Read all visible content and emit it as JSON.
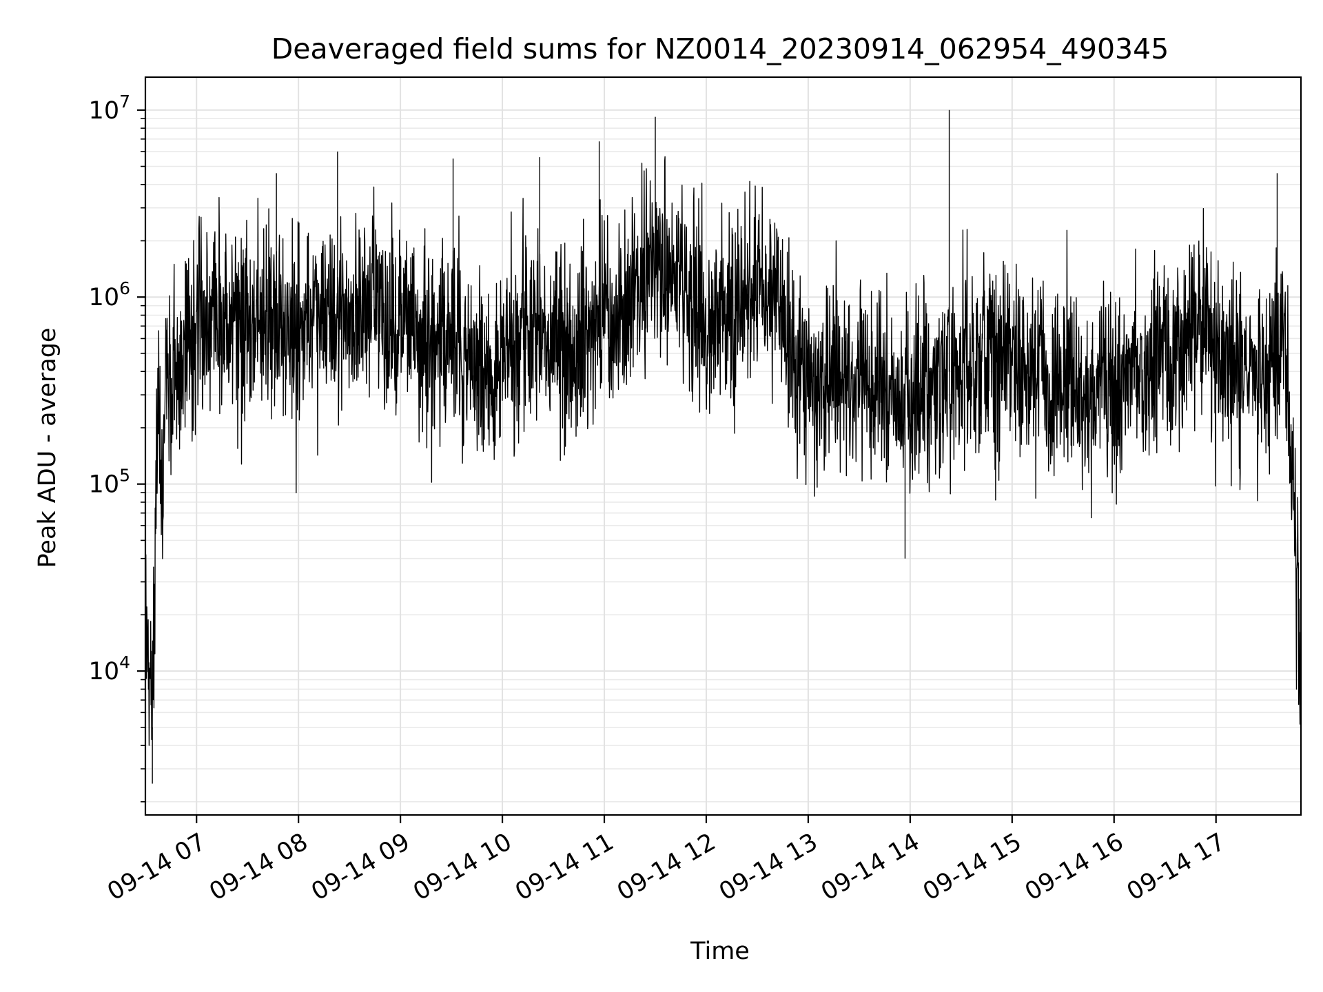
{
  "chart_data": {
    "type": "line",
    "title": "Deaveraged field sums for NZ0014_20230914_062954_490345",
    "xlabel": "Time",
    "ylabel": "Peak ADU - average",
    "xscale": "time",
    "yscale": "log",
    "xlim": [
      "2023-09-14 06:29:54",
      "2023-09-14 17:50:00"
    ],
    "ylim": [
      1700,
      15000000
    ],
    "x_ticks": [
      "2023-09-14 07:00",
      "2023-09-14 08:00",
      "2023-09-14 09:00",
      "2023-09-14 10:00",
      "2023-09-14 11:00",
      "2023-09-14 12:00",
      "2023-09-14 13:00",
      "2023-09-14 14:00",
      "2023-09-14 15:00",
      "2023-09-14 16:00",
      "2023-09-14 17:00"
    ],
    "x_tick_labels": [
      "09-14 07",
      "09-14 08",
      "09-14 09",
      "09-14 10",
      "09-14 11",
      "09-14 12",
      "09-14 13",
      "09-14 14",
      "09-14 15",
      "09-14 16",
      "09-14 17"
    ],
    "y_ticks": [
      10000,
      100000,
      1000000,
      10000000
    ],
    "y_tick_labels": [
      {
        "base": "10",
        "exp": "4"
      },
      {
        "base": "10",
        "exp": "5"
      },
      {
        "base": "10",
        "exp": "6"
      },
      {
        "base": "10",
        "exp": "7"
      }
    ],
    "grid": true,
    "line_color": "#000000",
    "series": [
      {
        "x": [
          "2023-09-14 06:30",
          "2023-09-14 06:32",
          "2023-09-14 06:34",
          "2023-09-14 06:36",
          "2023-09-14 06:38",
          "2023-09-14 06:40",
          "2023-09-14 06:42",
          "2023-09-14 06:45",
          "2023-09-14 06:50",
          "2023-09-14 06:55",
          "2023-09-14 07:00",
          "2023-09-14 07:10",
          "2023-09-14 07:20",
          "2023-09-14 07:30",
          "2023-09-14 07:40",
          "2023-09-14 07:50",
          "2023-09-14 08:00",
          "2023-09-14 08:10",
          "2023-09-14 08:20",
          "2023-09-14 08:30",
          "2023-09-14 08:40",
          "2023-09-14 08:50",
          "2023-09-14 09:00",
          "2023-09-14 09:10",
          "2023-09-14 09:20",
          "2023-09-14 09:30",
          "2023-09-14 09:40",
          "2023-09-14 09:50",
          "2023-09-14 10:00",
          "2023-09-14 10:10",
          "2023-09-14 10:20",
          "2023-09-14 10:30",
          "2023-09-14 10:40",
          "2023-09-14 10:50",
          "2023-09-14 11:00",
          "2023-09-14 11:10",
          "2023-09-14 11:20",
          "2023-09-14 11:30",
          "2023-09-14 11:40",
          "2023-09-14 11:50",
          "2023-09-14 12:00",
          "2023-09-14 12:10",
          "2023-09-14 12:20",
          "2023-09-14 12:30",
          "2023-09-14 12:40",
          "2023-09-14 12:50",
          "2023-09-14 13:00",
          "2023-09-14 13:10",
          "2023-09-14 13:20",
          "2023-09-14 13:30",
          "2023-09-14 13:40",
          "2023-09-14 13:50",
          "2023-09-14 14:00",
          "2023-09-14 14:10",
          "2023-09-14 14:20",
          "2023-09-14 14:30",
          "2023-09-14 14:40",
          "2023-09-14 14:50",
          "2023-09-14 15:00",
          "2023-09-14 15:10",
          "2023-09-14 15:20",
          "2023-09-14 15:30",
          "2023-09-14 15:40",
          "2023-09-14 15:50",
          "2023-09-14 16:00",
          "2023-09-14 16:10",
          "2023-09-14 16:20",
          "2023-09-14 16:30",
          "2023-09-14 16:40",
          "2023-09-14 16:50",
          "2023-09-14 17:00",
          "2023-09-14 17:10",
          "2023-09-14 17:20",
          "2023-09-14 17:30",
          "2023-09-14 17:40",
          "2023-09-14 17:45",
          "2023-09-14 17:48",
          "2023-09-14 17:50"
        ],
        "y": [
          18000,
          12000,
          5000,
          80000,
          300000,
          50000,
          500000,
          300000,
          400000,
          600000,
          700000,
          1000000,
          900000,
          600000,
          800000,
          700000,
          600000,
          700000,
          800000,
          700000,
          1000000,
          800000,
          700000,
          750000,
          600000,
          700000,
          500000,
          450000,
          400000,
          600000,
          700000,
          550000,
          500000,
          700000,
          800000,
          900000,
          1200000,
          1500000,
          1300000,
          1000000,
          700000,
          800000,
          900000,
          1200000,
          900000,
          500000,
          350000,
          300000,
          400000,
          350000,
          300000,
          350000,
          300000,
          350000,
          400000,
          400000,
          500000,
          450000,
          550000,
          400000,
          350000,
          400000,
          300000,
          350000,
          350000,
          400000,
          450000,
          400000,
          500000,
          650000,
          500000,
          400000,
          450000,
          400000,
          550000,
          100000,
          30000,
          8000
        ]
      }
    ],
    "spikes": [
      {
        "x": "2023-09-14 11:30",
        "y": 9200000
      },
      {
        "x": "2023-09-14 14:23",
        "y": 10000000
      },
      {
        "x": "2023-09-14 10:57",
        "y": 6800000
      },
      {
        "x": "2023-09-14 08:23",
        "y": 6000000
      },
      {
        "x": "2023-09-14 10:22",
        "y": 5600000
      },
      {
        "x": "2023-09-14 09:31",
        "y": 5500000
      },
      {
        "x": "2023-09-14 17:36",
        "y": 4600000
      },
      {
        "x": "2023-09-14 07:47",
        "y": 4600000
      },
      {
        "x": "2023-09-14 13:57",
        "y": 40000
      },
      {
        "x": "2023-09-14 06:34",
        "y": 2500
      }
    ]
  }
}
